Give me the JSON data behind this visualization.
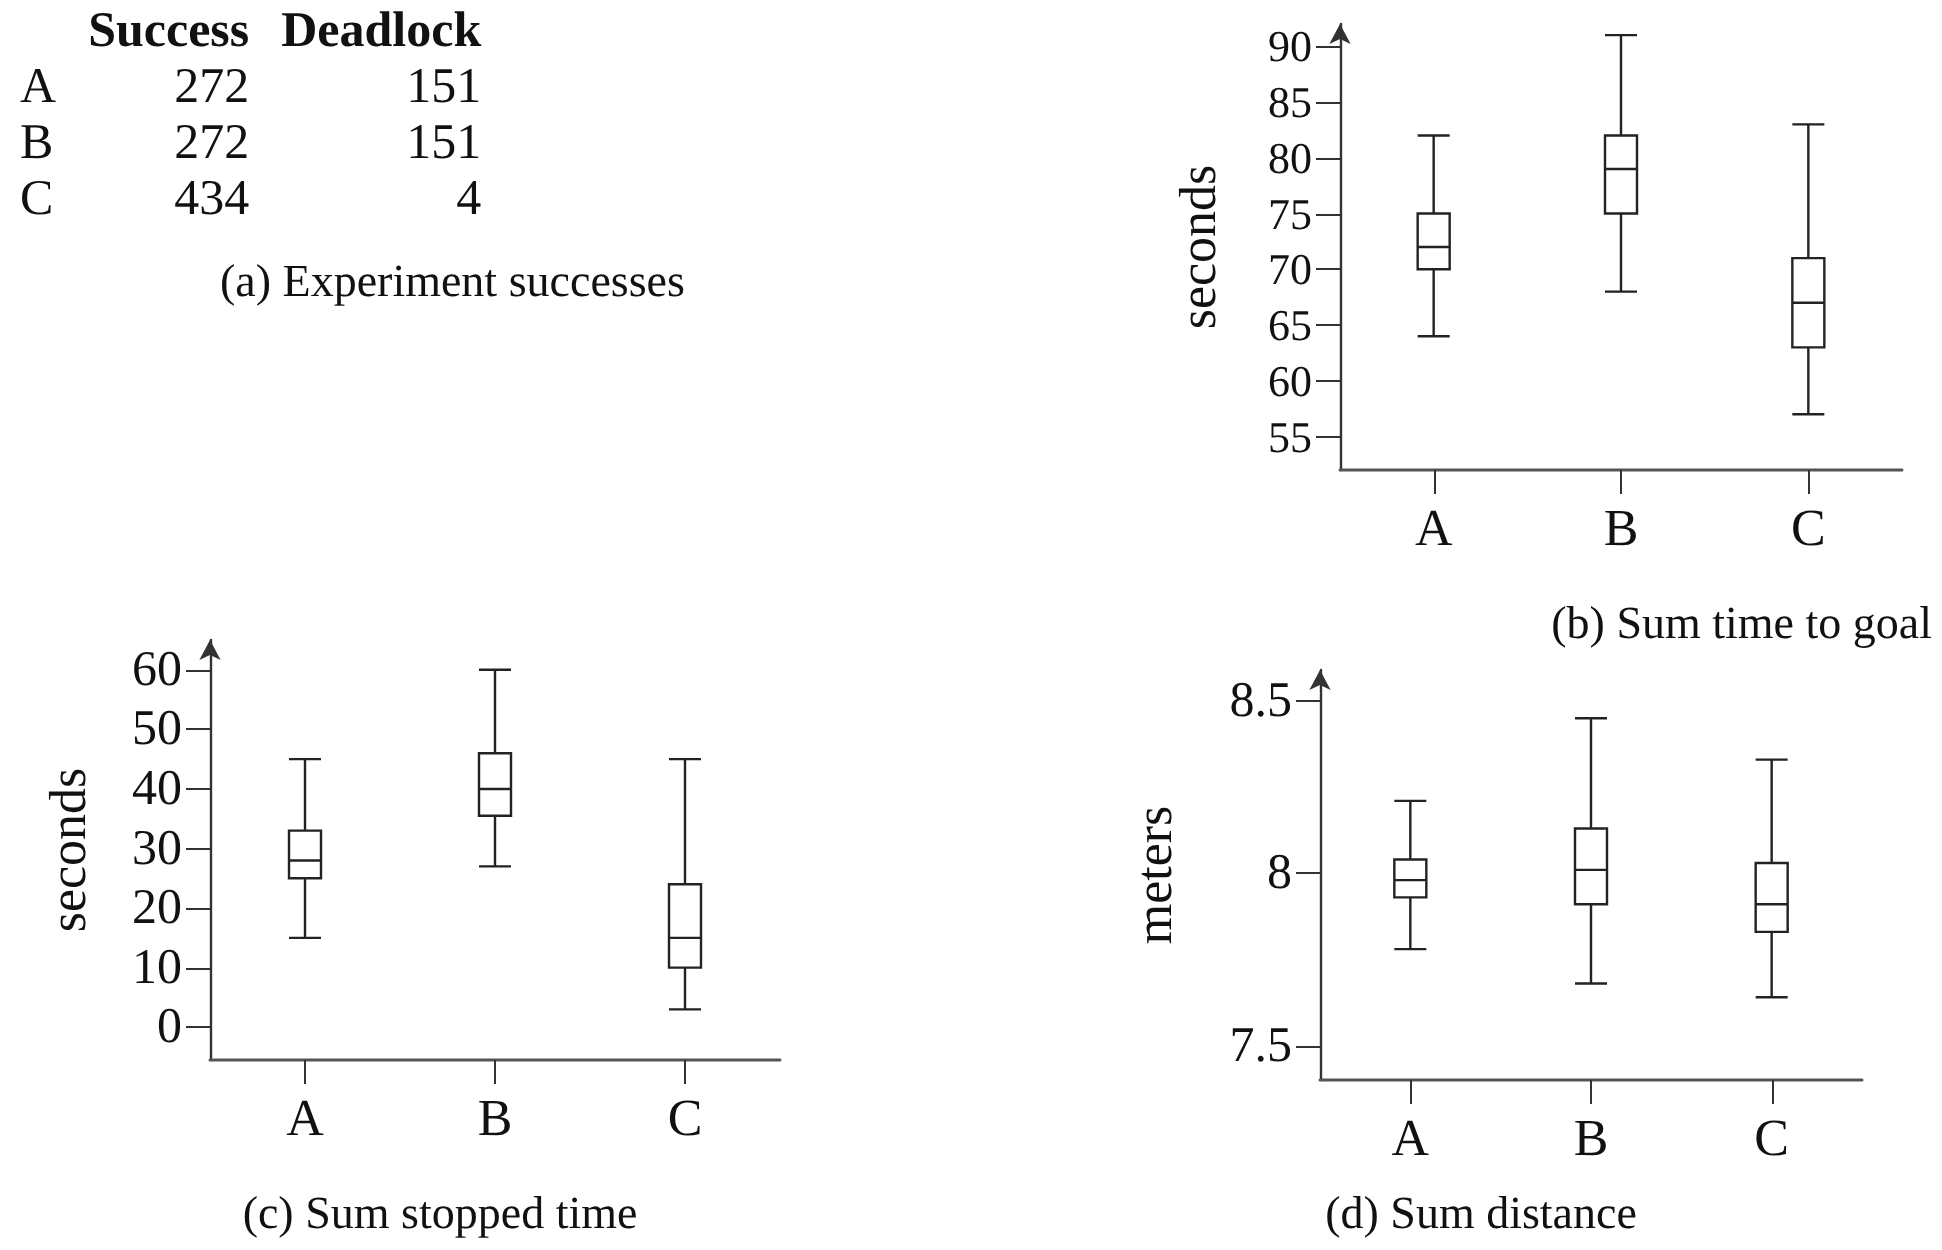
{
  "chart_data": [
    {
      "type": "other",
      "title": "(a) Experiment successes",
      "categories": [
        "A",
        "B",
        "C"
      ],
      "data_labels": true,
      "series": [
        {
          "name": "Success",
          "values": [
            272,
            272,
            434
          ]
        },
        {
          "name": "Deadlock",
          "values": [
            151,
            151,
            4
          ]
        }
      ]
    },
    {
      "type": "box",
      "title": "(b) Sum time to goal",
      "ylabel": "seconds",
      "categories": [
        "A",
        "B",
        "C"
      ],
      "ylim": [
        52,
        92
      ],
      "yticks": [
        55,
        60,
        65,
        70,
        75,
        80,
        85,
        90
      ],
      "boxes": [
        {
          "low": 64,
          "q1": 70,
          "median": 72,
          "q3": 75,
          "high": 82
        },
        {
          "low": 68,
          "q1": 75,
          "median": 79,
          "q3": 82,
          "high": 91
        },
        {
          "low": 57,
          "q1": 63,
          "median": 67,
          "q3": 71,
          "high": 83
        }
      ]
    },
    {
      "type": "box",
      "title": "(c) Sum stopped time",
      "ylabel": "seconds",
      "categories": [
        "A",
        "B",
        "C"
      ],
      "ylim": [
        -5.5,
        65
      ],
      "yticks": [
        0,
        10,
        20,
        30,
        40,
        50,
        60
      ],
      "boxes": [
        {
          "low": 15,
          "q1": 25,
          "median": 28,
          "q3": 33,
          "high": 45
        },
        {
          "low": 27,
          "q1": 35.5,
          "median": 40,
          "q3": 46,
          "high": 60
        },
        {
          "low": 3,
          "q1": 10,
          "median": 15,
          "q3": 24,
          "high": 45
        }
      ]
    },
    {
      "type": "box",
      "title": "(d) Sum distance",
      "ylabel": "meters",
      "categories": [
        "A",
        "B",
        "C"
      ],
      "ylim": [
        7.4,
        8.59
      ],
      "yticks": [
        7.5,
        8,
        8.5
      ],
      "boxes": [
        {
          "low": 7.78,
          "q1": 7.93,
          "median": 7.98,
          "q3": 8.04,
          "high": 8.21
        },
        {
          "low": 7.68,
          "q1": 7.91,
          "median": 8.01,
          "q3": 8.13,
          "high": 8.45
        },
        {
          "low": 7.64,
          "q1": 7.83,
          "median": 7.91,
          "q3": 8.03,
          "high": 8.33
        }
      ]
    }
  ]
}
